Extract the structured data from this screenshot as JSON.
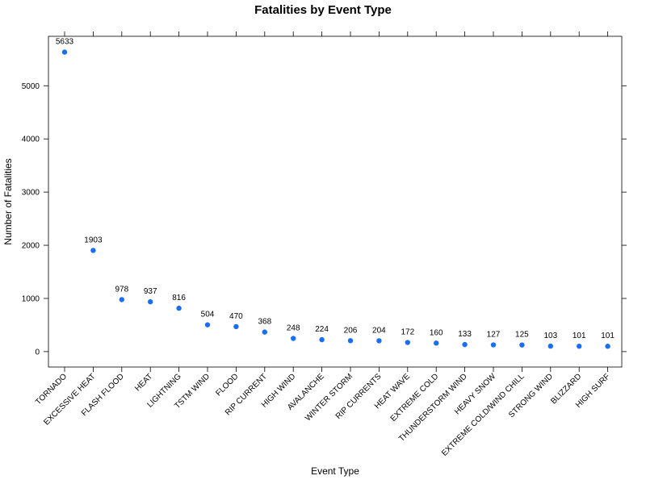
{
  "chart_data": {
    "type": "scatter",
    "title": "Fatalities by Event Type",
    "xlabel": "Event Type",
    "ylabel": "Number of Fatalities",
    "ylim": [
      -290,
      5930
    ],
    "yticks": [
      0,
      1000,
      2000,
      3000,
      4000,
      5000
    ],
    "grid": false,
    "point_color": "#1a6ef5",
    "categories": [
      "TORNADO",
      "EXCESSIVE HEAT",
      "FLASH FLOOD",
      "HEAT",
      "LIGHTNING",
      "TSTM WIND",
      "FLOOD",
      "RIP CURRENT",
      "HIGH WIND",
      "AVALANCHE",
      "WINTER STORM",
      "RIP CURRENTS",
      "HEAT WAVE",
      "EXTREME COLD",
      "THUNDERSTORM WIND",
      "HEAVY SNOW",
      "EXTREME COLD/WIND CHILL",
      "STRONG WIND",
      "BLIZZARD",
      "HIGH SURF"
    ],
    "values": [
      5633,
      1903,
      978,
      937,
      816,
      504,
      470,
      368,
      248,
      224,
      206,
      204,
      172,
      160,
      133,
      127,
      125,
      103,
      101,
      101
    ]
  }
}
